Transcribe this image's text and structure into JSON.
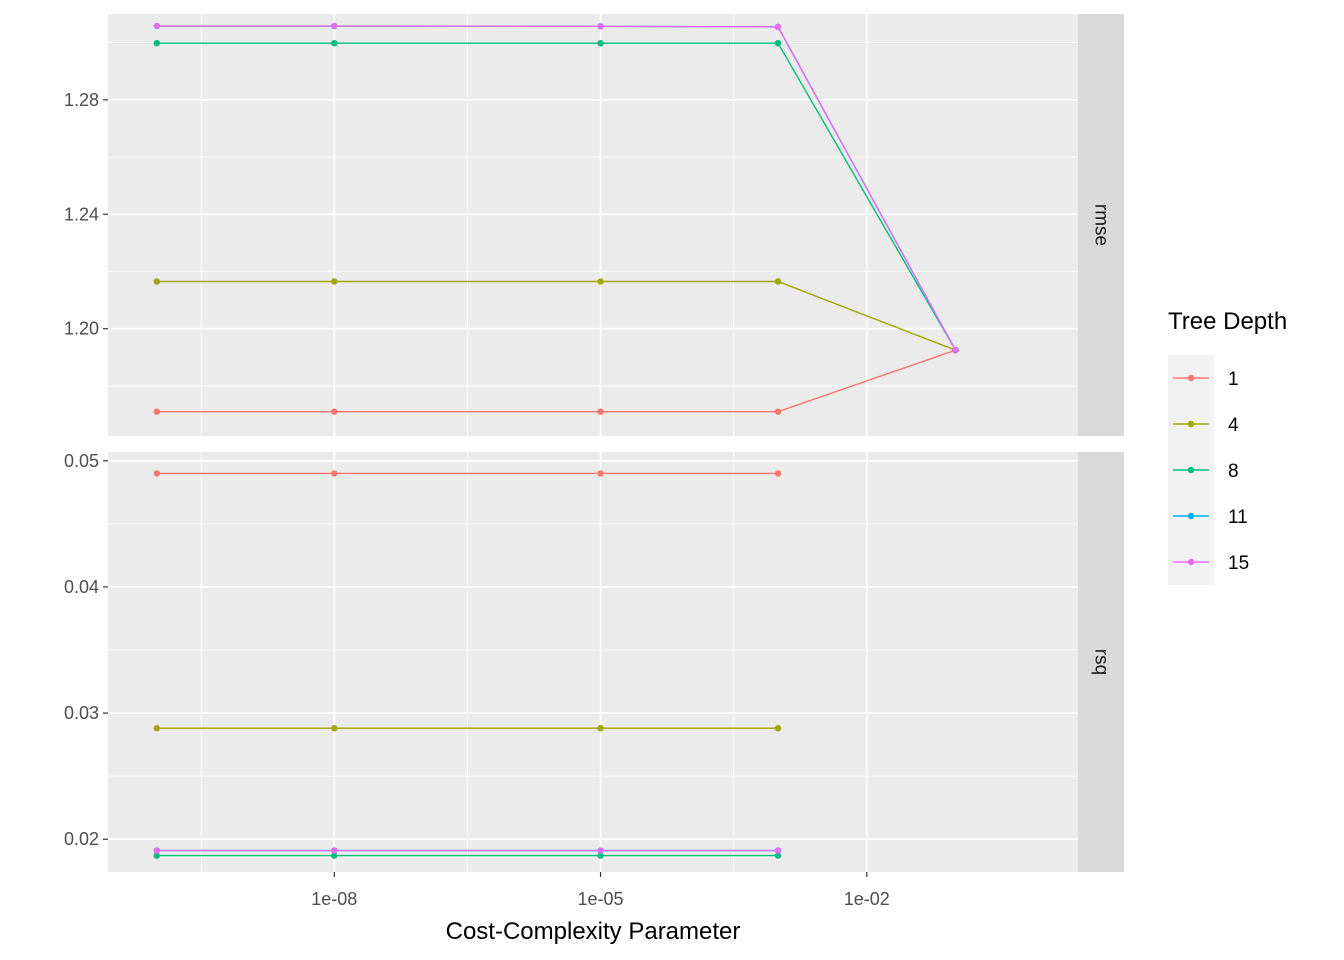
{
  "chart_data": {
    "type": "line",
    "xlabel": "Cost-Complexity Parameter",
    "x_scale": "log10",
    "x": [
      1e-10,
      1e-08,
      1e-05,
      0.001,
      0.1
    ],
    "x_ticks": [
      {
        "value": 1e-08,
        "label": "1e-08"
      },
      {
        "value": 1e-05,
        "label": "1e-05"
      },
      {
        "value": 0.01,
        "label": "1e-02"
      }
    ],
    "legend": {
      "title": "Tree Depth",
      "position": "right",
      "entries": [
        {
          "label": "1",
          "color": "#F8766D"
        },
        {
          "label": "4",
          "color": "#A3A500"
        },
        {
          "label": "8",
          "color": "#00BF7D"
        },
        {
          "label": "11",
          "color": "#00B0F6"
        },
        {
          "label": "15",
          "color": "#E76BF3"
        }
      ]
    },
    "panels": [
      {
        "strip": "rmse",
        "ylim": [
          1.1625,
          1.31
        ],
        "y_ticks": [
          {
            "value": 1.2,
            "label": "1.20"
          },
          {
            "value": 1.24,
            "label": "1.24"
          },
          {
            "value": 1.28,
            "label": "1.28"
          }
        ],
        "series": [
          {
            "name": "1",
            "values": [
              1.171,
              1.171,
              1.171,
              1.171,
              1.1925
            ]
          },
          {
            "name": "4",
            "values": [
              1.2165,
              1.2165,
              1.2165,
              1.2165,
              1.1925
            ]
          },
          {
            "name": "8",
            "values": [
              1.2998,
              1.2998,
              1.2998,
              1.2998,
              1.1925
            ]
          },
          {
            "name": "11",
            "values": [
              1.3058,
              1.3058,
              1.3057,
              1.3055,
              1.1925
            ]
          },
          {
            "name": "15",
            "values": [
              1.3058,
              1.3058,
              1.3057,
              1.3055,
              1.1925
            ]
          }
        ]
      },
      {
        "strip": "rsq",
        "ylim": [
          0.0174,
          0.0507
        ],
        "y_ticks": [
          {
            "value": 0.02,
            "label": "0.02"
          },
          {
            "value": 0.03,
            "label": "0.03"
          },
          {
            "value": 0.04,
            "label": "0.04"
          },
          {
            "value": 0.05,
            "label": "0.05"
          }
        ],
        "series": [
          {
            "name": "1",
            "values": [
              0.049,
              0.049,
              0.049,
              0.049,
              null
            ]
          },
          {
            "name": "4",
            "values": [
              0.0288,
              0.0288,
              0.0288,
              0.0288,
              null
            ]
          },
          {
            "name": "8",
            "values": [
              0.0187,
              0.0187,
              0.0187,
              0.0187,
              null
            ]
          },
          {
            "name": "11",
            "values": [
              0.0191,
              0.0191,
              0.0191,
              0.0191,
              null
            ]
          },
          {
            "name": "15",
            "values": [
              0.0191,
              0.0191,
              0.0191,
              0.0191,
              null
            ]
          }
        ]
      }
    ]
  }
}
